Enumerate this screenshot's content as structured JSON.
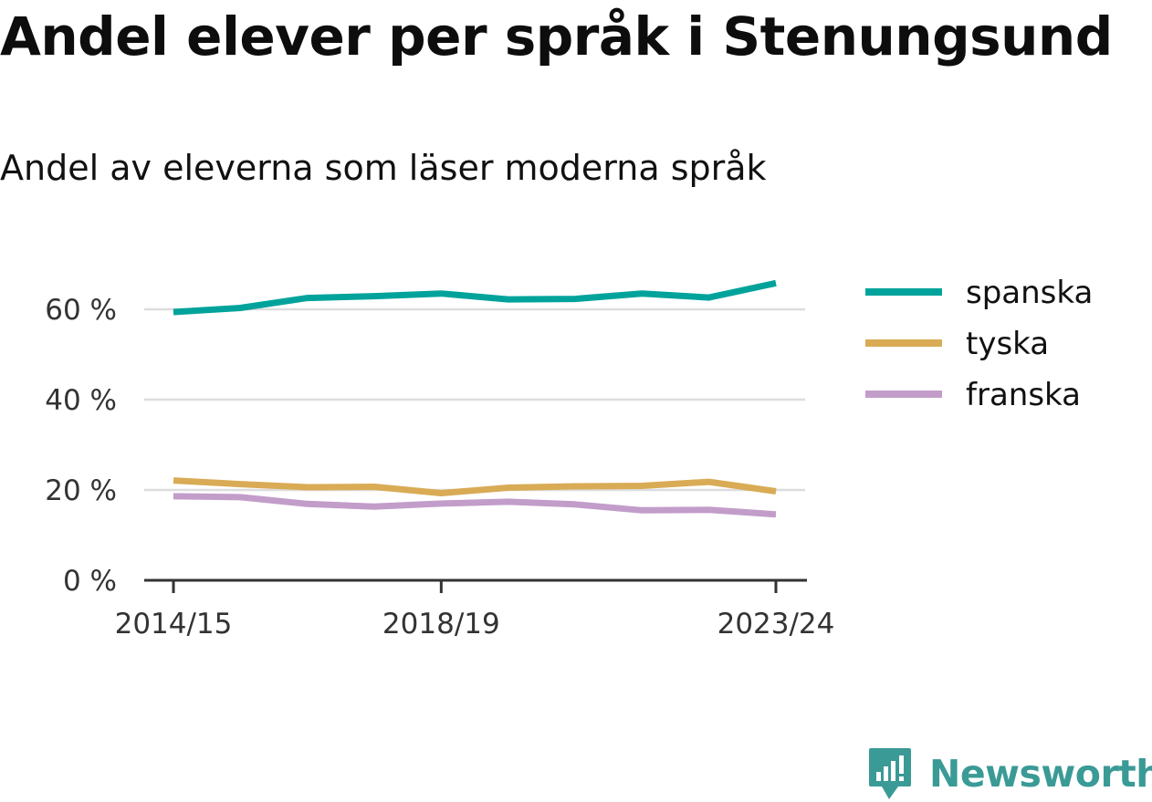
{
  "header": {
    "title": "Andel elever per språk i Stenungsund",
    "subtitle": "Andel av eleverna som läser moderna språk"
  },
  "brand": {
    "name": "Newsworthy",
    "icon": "newsworthy-logo-icon",
    "color": "#3a9a96"
  },
  "chart_data": {
    "type": "line",
    "title": "Andel elever per språk i Stenungsund",
    "subtitle": "Andel av eleverna som läser moderna språk",
    "xlabel": "",
    "ylabel": "",
    "x": [
      "2014/15",
      "2015/16",
      "2016/17",
      "2017/18",
      "2018/19",
      "2019/20",
      "2020/21",
      "2021/22",
      "2022/23",
      "2023/24"
    ],
    "x_tick_labels": [
      "2014/15",
      "2018/19",
      "2023/24"
    ],
    "y_ticks": [
      0,
      20,
      40,
      60
    ],
    "y_tick_labels": [
      "0 %",
      "20 %",
      "40 %",
      "60 %"
    ],
    "ylim": [
      0,
      66
    ],
    "grid": true,
    "legend_position": "right",
    "series": [
      {
        "name": "spanska",
        "color": "#00a39b",
        "values": [
          59.4,
          60.3,
          62.5,
          62.9,
          63.5,
          62.2,
          62.3,
          63.5,
          62.6,
          65.8
        ]
      },
      {
        "name": "tyska",
        "color": "#d9ab55",
        "values": [
          22.1,
          21.3,
          20.6,
          20.7,
          19.3,
          20.5,
          20.8,
          20.9,
          21.8,
          19.7
        ]
      },
      {
        "name": "franska",
        "color": "#c29dca",
        "values": [
          18.6,
          18.4,
          16.9,
          16.3,
          17.0,
          17.4,
          16.8,
          15.5,
          15.6,
          14.6
        ]
      }
    ]
  }
}
